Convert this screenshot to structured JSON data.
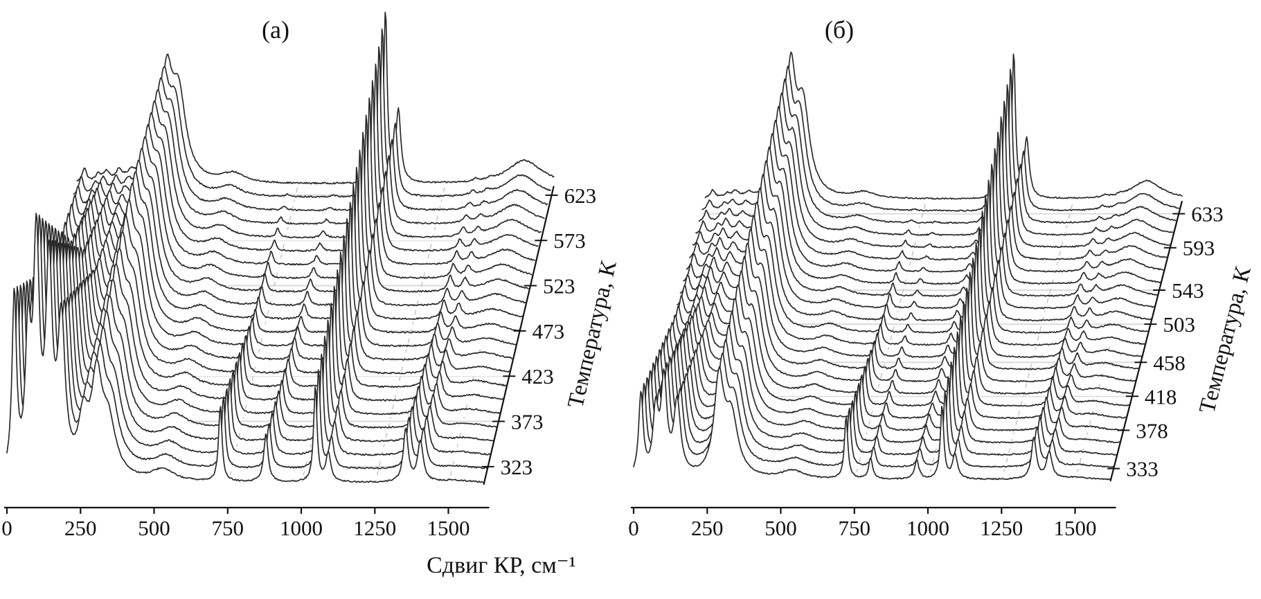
{
  "figure": {
    "xlabel": "Сдвиг КР, см⁻¹",
    "background": "#ffffff"
  },
  "chart_data": [
    {
      "type": "line",
      "variant": "3d-waterfall-spectra",
      "title": "(а)",
      "xlabel": "Сдвиг КР, см⁻¹",
      "depth_label": "Температура, К",
      "xlim": [
        0,
        1620
      ],
      "x_ticks": [
        0,
        250,
        500,
        750,
        1000,
        1250,
        1500
      ],
      "temperature_ticks": [
        323,
        373,
        423,
        473,
        523,
        573,
        623
      ],
      "temperature_range": [
        303,
        633
      ],
      "n_spectra": 23,
      "line_color": "#2a2a2a",
      "grid": true,
      "peaks": [
        {
          "center": 25,
          "width": 9,
          "amps": [
            0.75,
            0.25,
            0.06
          ]
        },
        {
          "center": 72,
          "width": 11,
          "amps": [
            0.55,
            0.18,
            0.03
          ]
        },
        {
          "center": 100,
          "width": 12,
          "amps": [
            0.95,
            0.32,
            0.04
          ]
        },
        {
          "center": 143,
          "width": 13,
          "amps": [
            0.85,
            0.28,
            0.04
          ]
        },
        {
          "center": 185,
          "width": 15,
          "amps": [
            0.62,
            0.2,
            0.03
          ]
        },
        {
          "center": 260,
          "width": 20,
          "amps": [
            0.22,
            0.26,
            0.2
          ]
        },
        {
          "center": 305,
          "width": 22,
          "amps": [
            0.38,
            0.45,
            0.38
          ]
        },
        {
          "center": 345,
          "width": 30,
          "amps": [
            0.22,
            0.35,
            0.35
          ]
        },
        {
          "center": 530,
          "width": 45,
          "amps": [
            0.05,
            0.05,
            0.04
          ]
        },
        {
          "center": 725,
          "width": 7,
          "amps": [
            0.32,
            0.1,
            0.0
          ]
        },
        {
          "center": 880,
          "width": 9,
          "amps": [
            0.2,
            0.07,
            0.0
          ]
        },
        {
          "center": 1048,
          "width": 7,
          "amps": [
            0.4,
            0.55,
            0.72
          ]
        },
        {
          "center": 1092,
          "width": 10,
          "amps": [
            0.12,
            0.2,
            0.3
          ]
        },
        {
          "center": 1355,
          "width": 10,
          "amps": [
            0.22,
            0.08,
            0.01
          ]
        },
        {
          "center": 1405,
          "width": 11,
          "amps": [
            0.17,
            0.06,
            0.01
          ]
        },
        {
          "center": 1520,
          "width": 70,
          "amps": [
            0.01,
            0.04,
            0.1
          ]
        }
      ]
    },
    {
      "type": "line",
      "variant": "3d-waterfall-spectra",
      "title": "(б)",
      "xlabel": "Сдвиг КР, см⁻¹",
      "depth_label": "Температура, К",
      "xlim": [
        0,
        1620
      ],
      "x_ticks": [
        0,
        250,
        500,
        750,
        1000,
        1250,
        1500
      ],
      "temperature_ticks": [
        333,
        378,
        418,
        458,
        503,
        543,
        593,
        633
      ],
      "temperature_range": [
        318,
        648
      ],
      "n_spectra": 24,
      "line_color": "#2a2a2a",
      "grid": true,
      "peaks": [
        {
          "center": 25,
          "width": 9,
          "amps": [
            0.4,
            0.12,
            0.04
          ]
        },
        {
          "center": 75,
          "width": 11,
          "amps": [
            0.3,
            0.1,
            0.02
          ]
        },
        {
          "center": 103,
          "width": 12,
          "amps": [
            0.45,
            0.15,
            0.03
          ]
        },
        {
          "center": 148,
          "width": 14,
          "amps": [
            0.35,
            0.12,
            0.02
          ]
        },
        {
          "center": 290,
          "width": 20,
          "amps": [
            0.45,
            0.52,
            0.58
          ]
        },
        {
          "center": 332,
          "width": 27,
          "amps": [
            0.28,
            0.36,
            0.42
          ]
        },
        {
          "center": 540,
          "width": 45,
          "amps": [
            0.04,
            0.04,
            0.03
          ]
        },
        {
          "center": 722,
          "width": 7,
          "amps": [
            0.3,
            0.09,
            0.0
          ]
        },
        {
          "center": 805,
          "width": 8,
          "amps": [
            0.1,
            0.04,
            0.0
          ]
        },
        {
          "center": 962,
          "width": 9,
          "amps": [
            0.09,
            0.05,
            0.02
          ]
        },
        {
          "center": 1048,
          "width": 7,
          "amps": [
            0.35,
            0.5,
            0.7
          ]
        },
        {
          "center": 1092,
          "width": 10,
          "amps": [
            0.12,
            0.2,
            0.28
          ]
        },
        {
          "center": 1360,
          "width": 10,
          "amps": [
            0.2,
            0.07,
            0.01
          ]
        },
        {
          "center": 1412,
          "width": 11,
          "amps": [
            0.13,
            0.05,
            0.01
          ]
        },
        {
          "center": 1500,
          "width": 60,
          "amps": [
            0.01,
            0.04,
            0.09
          ]
        }
      ]
    }
  ]
}
